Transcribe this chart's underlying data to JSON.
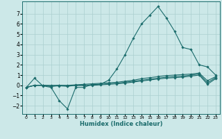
{
  "xlabel": "Humidex (Indice chaleur)",
  "bg_color": "#cce8e8",
  "grid_color": "#aacfcf",
  "line_color": "#1a6b6b",
  "xlim": [
    -0.5,
    23.5
  ],
  "ylim": [
    -2.8,
    8.2
  ],
  "xticks": [
    0,
    1,
    2,
    3,
    4,
    5,
    6,
    7,
    8,
    9,
    10,
    11,
    12,
    13,
    14,
    15,
    16,
    17,
    18,
    19,
    20,
    21,
    22,
    23
  ],
  "yticks": [
    -2,
    -1,
    0,
    1,
    2,
    3,
    4,
    5,
    6,
    7
  ],
  "series": [
    {
      "x": [
        0,
        1,
        2,
        3,
        4,
        5,
        6,
        7,
        8,
        9,
        10,
        11,
        12,
        13,
        14,
        15,
        16,
        17,
        18,
        19,
        20,
        21,
        22,
        23
      ],
      "y": [
        -0.2,
        0.7,
        -0.05,
        -0.2,
        -1.5,
        -2.3,
        -0.2,
        -0.2,
        0.1,
        0.1,
        0.5,
        1.6,
        3.0,
        4.6,
        6.0,
        6.85,
        7.7,
        6.6,
        5.3,
        3.7,
        3.5,
        2.0,
        1.8,
        1.0
      ]
    },
    {
      "x": [
        0,
        1,
        2,
        3,
        4,
        5,
        6,
        7,
        8,
        9,
        10,
        11,
        12,
        13,
        14,
        15,
        16,
        17,
        18,
        19,
        20,
        21,
        22,
        23
      ],
      "y": [
        -0.2,
        0.0,
        0.0,
        0.0,
        0.0,
        0.0,
        0.05,
        0.1,
        0.15,
        0.2,
        0.25,
        0.3,
        0.4,
        0.5,
        0.65,
        0.75,
        0.85,
        0.95,
        1.0,
        1.05,
        1.1,
        1.2,
        0.45,
        0.85
      ]
    },
    {
      "x": [
        0,
        1,
        2,
        3,
        4,
        5,
        6,
        7,
        8,
        9,
        10,
        11,
        12,
        13,
        14,
        15,
        16,
        17,
        18,
        19,
        20,
        21,
        22,
        23
      ],
      "y": [
        -0.2,
        0.0,
        0.0,
        -0.1,
        0.0,
        -0.05,
        0.0,
        0.0,
        0.05,
        0.1,
        0.15,
        0.2,
        0.3,
        0.4,
        0.5,
        0.6,
        0.7,
        0.8,
        0.85,
        0.9,
        1.0,
        1.1,
        0.25,
        0.75
      ]
    },
    {
      "x": [
        0,
        1,
        2,
        3,
        4,
        5,
        6,
        7,
        8,
        9,
        10,
        11,
        12,
        13,
        14,
        15,
        16,
        17,
        18,
        19,
        20,
        21,
        22,
        23
      ],
      "y": [
        -0.2,
        0.0,
        0.0,
        -0.1,
        -0.05,
        -0.1,
        0.0,
        0.0,
        0.0,
        0.05,
        0.1,
        0.15,
        0.22,
        0.32,
        0.42,
        0.52,
        0.62,
        0.7,
        0.75,
        0.8,
        0.9,
        1.0,
        0.1,
        0.65
      ]
    }
  ]
}
